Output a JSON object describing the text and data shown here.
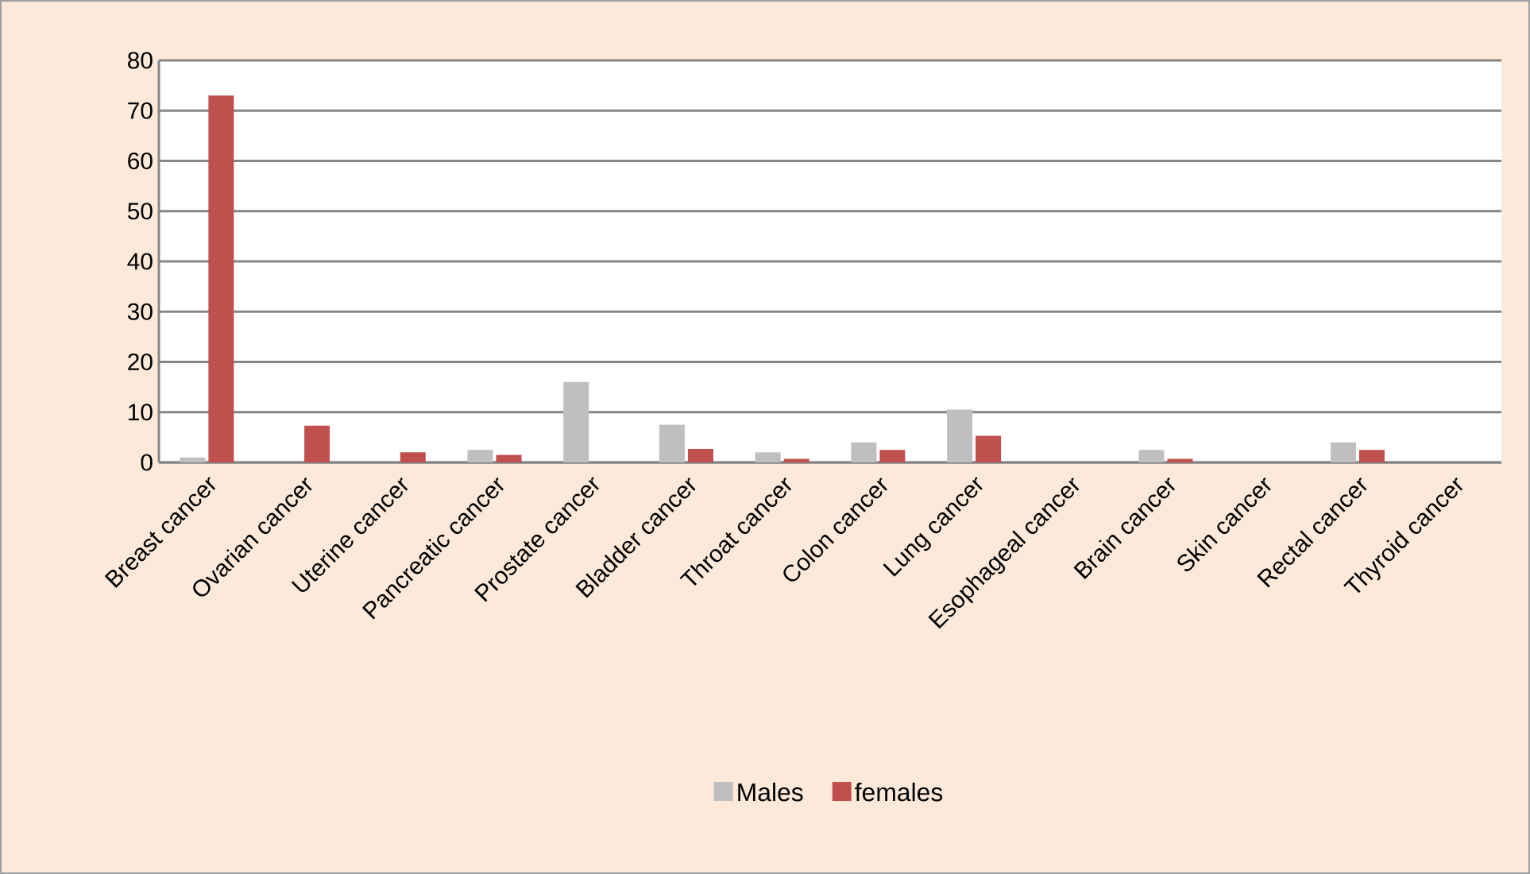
{
  "chart_data": {
    "type": "bar",
    "categories": [
      "Breast cancer",
      "Ovarian cancer",
      "Uterine cancer",
      "Pancreatic cancer",
      "Prostate cancer",
      "Bladder cancer",
      "Throat cancer",
      "Colon cancer",
      "Lung cancer",
      "Esophageal cancer",
      "Brain cancer",
      "Skin cancer",
      "Rectal cancer",
      "Thyroid cancer"
    ],
    "series": [
      {
        "name": "Males",
        "color": "#bfbfbf",
        "values": [
          1,
          0,
          0,
          2.5,
          16,
          7.5,
          2,
          4,
          10.5,
          null,
          2.5,
          null,
          4,
          0
        ]
      },
      {
        "name": "females",
        "color": "#c0504d",
        "values": [
          73,
          7.3,
          2,
          1.5,
          0,
          2.7,
          0.7,
          2.5,
          5.3,
          0,
          0.7,
          0,
          2.5,
          0
        ]
      }
    ],
    "ylim": [
      0,
      80
    ],
    "yticks": [
      0,
      10,
      20,
      30,
      40,
      50,
      60,
      70,
      80
    ],
    "grid": "y",
    "legend": "bottom"
  }
}
